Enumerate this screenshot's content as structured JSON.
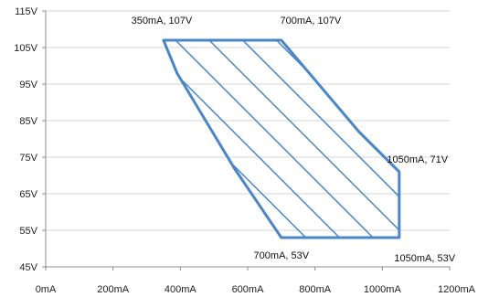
{
  "chart_data": {
    "type": "area",
    "title": "",
    "xlabel": "",
    "ylabel": "",
    "xlim": [
      0,
      1200
    ],
    "ylim": [
      45,
      115
    ],
    "x_ticks": [
      0,
      200,
      400,
      600,
      800,
      1000,
      1200
    ],
    "y_ticks": [
      45,
      55,
      65,
      75,
      85,
      95,
      105,
      115
    ],
    "x_tick_labels": [
      "0mA",
      "200mA",
      "400mA",
      "600mA",
      "800mA",
      "1000mA",
      "1200mA"
    ],
    "y_tick_labels": [
      "45V",
      "55V",
      "65V",
      "75V",
      "85V",
      "95V",
      "105V",
      "115V"
    ],
    "grid": "horizontal",
    "series": [
      {
        "fill": "diagonal-hatch",
        "color": "#4a86c8",
        "points": [
          {
            "x": 350,
            "y": 107
          },
          {
            "x": 700,
            "y": 107
          },
          {
            "x": 930,
            "y": 82
          },
          {
            "x": 1050,
            "y": 71
          },
          {
            "x": 1050,
            "y": 53
          },
          {
            "x": 700,
            "y": 53
          },
          {
            "x": 560,
            "y": 72
          },
          {
            "x": 390,
            "y": 98
          }
        ]
      }
    ],
    "annotations": [
      {
        "text": "350mA, 107V",
        "x": 350,
        "y": 107,
        "anchor": "left-above"
      },
      {
        "text": "700mA, 107V",
        "x": 700,
        "y": 107,
        "anchor": "right-above"
      },
      {
        "text": "1050mA, 71V",
        "x": 1050,
        "y": 71,
        "anchor": "right-above"
      },
      {
        "text": "700mA, 53V",
        "x": 700,
        "y": 53,
        "anchor": "below"
      },
      {
        "text": "1050mA, 53V",
        "x": 1050,
        "y": 53,
        "anchor": "right-below"
      }
    ]
  }
}
